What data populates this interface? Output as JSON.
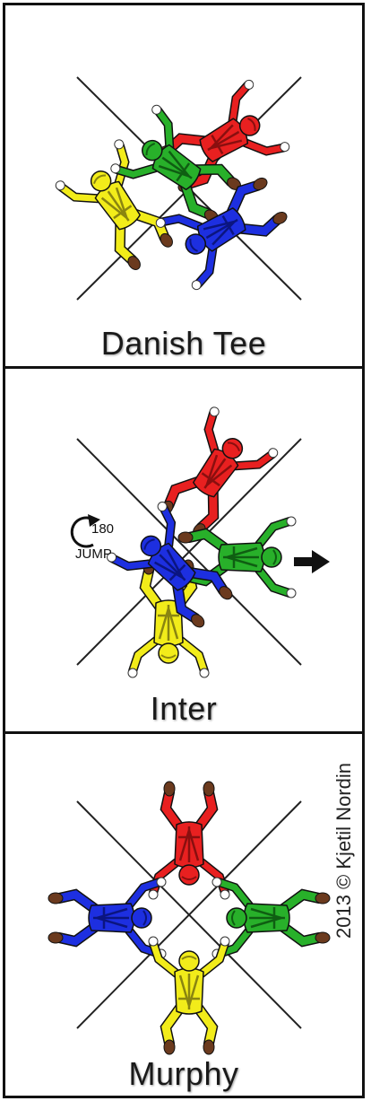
{
  "panels": [
    {
      "title": "Danish Tee"
    },
    {
      "title": "Inter",
      "jump": {
        "degrees": "180",
        "word": "JUMP"
      }
    },
    {
      "title": "Murphy",
      "credit": "2013 © Kjetil Nordin"
    }
  ],
  "jumpers": {
    "red": {
      "suit": "#e82020",
      "dark": "#8a0f0f"
    },
    "green": {
      "suit": "#28b02a",
      "dark": "#0f5e12"
    },
    "blue": {
      "suit": "#1d2fe0",
      "dark": "#0b1580"
    },
    "yellow": {
      "suit": "#f2ec1a",
      "dark": "#8a8510"
    }
  },
  "skin": "#6b3a1e",
  "glove": "#ffffff",
  "icons": {
    "rotation": "rotate-arrow-icon",
    "direction": "right-arrow-icon"
  }
}
